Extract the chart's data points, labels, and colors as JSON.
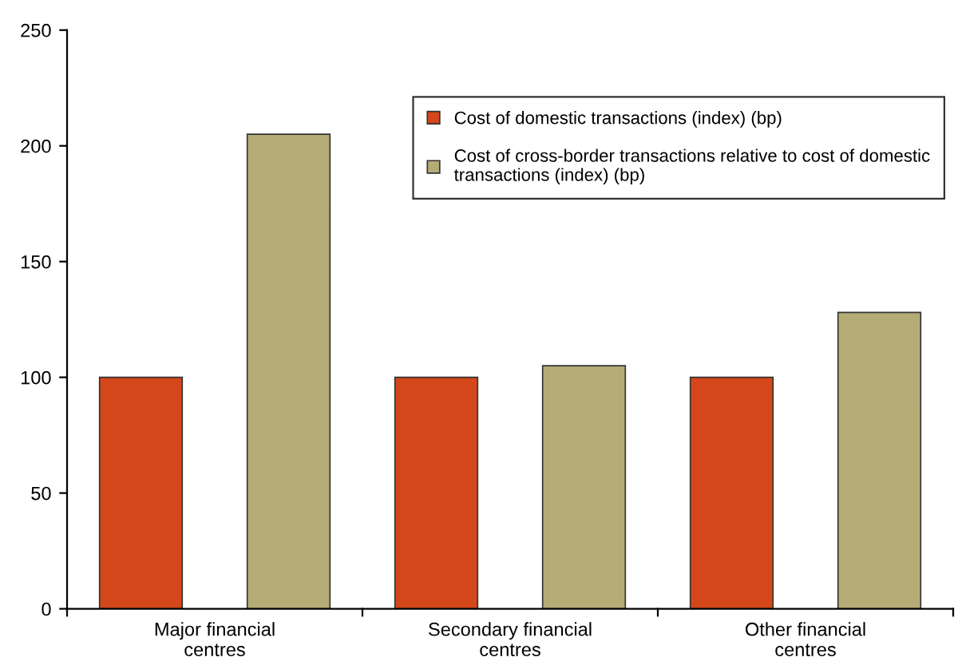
{
  "chart_data": {
    "type": "bar",
    "categories": [
      "Major financial centres",
      "Secondary financial centres",
      "Other financial centres"
    ],
    "series": [
      {
        "name": "Cost of domestic transactions (index) (bp)",
        "color": "#d4471a",
        "values": [
          100,
          100,
          100
        ]
      },
      {
        "name": "Cost of cross-border transactions relative to cost of domestic transactions (index) (bp)",
        "color": "#b5ab76",
        "values": [
          205,
          105,
          128
        ]
      }
    ],
    "ylim": [
      0,
      250
    ],
    "yticks": [
      0,
      50,
      100,
      150,
      200,
      250
    ],
    "grid": false,
    "legend": "top right"
  }
}
